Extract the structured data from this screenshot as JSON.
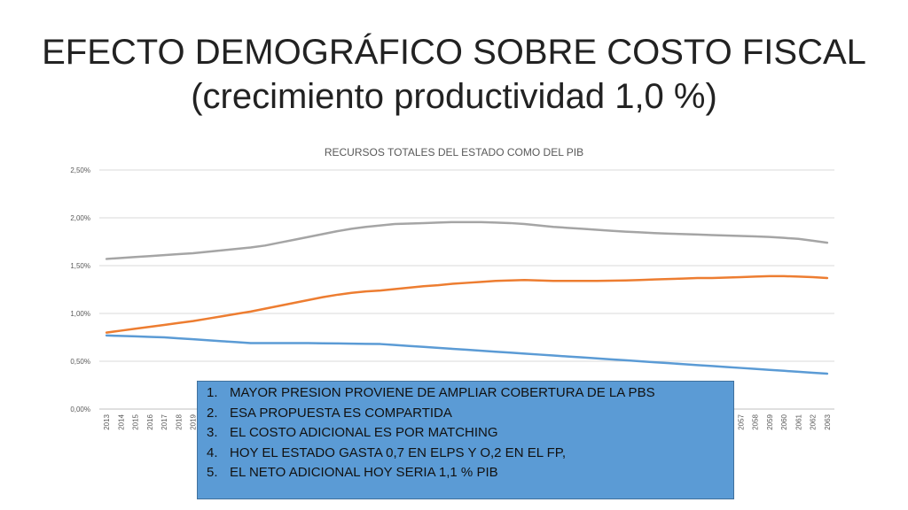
{
  "slide": {
    "title_line1": "EFECTO DEMOGRÁFICO SOBRE COSTO FISCAL",
    "title_line2": "(crecimiento productividad 1,0 %)"
  },
  "chart_data": {
    "type": "line",
    "title": "RECURSOS TOTALES DEL ESTADO COMO DEL PIB",
    "xlabel": "",
    "ylabel": "",
    "x": [
      "2013",
      "2014",
      "2015",
      "2016",
      "2017",
      "2018",
      "2019",
      "2020",
      "2021",
      "2022",
      "2023",
      "2024",
      "2025",
      "2026",
      "2027",
      "2028",
      "2029",
      "2030",
      "2031",
      "2032",
      "2033",
      "2034",
      "2035",
      "2036",
      "2037",
      "2038",
      "2039",
      "2040",
      "2041",
      "2042",
      "2043",
      "2044",
      "2045",
      "2046",
      "2047",
      "2048",
      "2049",
      "2050",
      "2051",
      "2052",
      "2053",
      "2054",
      "2055",
      "2056",
      "2057",
      "2058",
      "2059",
      "2060",
      "2061",
      "2062",
      "2063"
    ],
    "x_visible_ticks": [
      "2013",
      "2014",
      "2015",
      "2016",
      "2017",
      "2018",
      "2019",
      "2057",
      "2058",
      "2059",
      "2060",
      "2061",
      "2062",
      "2063"
    ],
    "yticks": [
      "0,00%",
      "0,50%",
      "1,00%",
      "1,50%",
      "2,00%",
      "2,50%"
    ],
    "ylim": [
      0,
      2.5
    ],
    "y_unit": "%",
    "grid": true,
    "legend": "none",
    "series": [
      {
        "color": "#5b9bd5",
        "values": [
          0.77,
          0.765,
          0.76,
          0.755,
          0.75,
          0.74,
          0.73,
          0.72,
          0.71,
          0.7,
          0.69,
          0.69,
          0.69,
          0.69,
          0.69,
          0.688,
          0.686,
          0.684,
          0.682,
          0.68,
          0.67,
          0.66,
          0.65,
          0.64,
          0.63,
          0.62,
          0.61,
          0.6,
          0.59,
          0.58,
          0.57,
          0.56,
          0.55,
          0.54,
          0.53,
          0.52,
          0.51,
          0.5,
          0.49,
          0.48,
          0.47,
          0.46,
          0.45,
          0.44,
          0.43,
          0.42,
          0.41,
          0.4,
          0.39,
          0.38,
          0.37
        ]
      },
      {
        "color": "#ed7d31",
        "values": [
          0.8,
          0.82,
          0.84,
          0.86,
          0.88,
          0.9,
          0.92,
          0.945,
          0.97,
          0.995,
          1.02,
          1.05,
          1.08,
          1.11,
          1.14,
          1.17,
          1.195,
          1.215,
          1.23,
          1.24,
          1.255,
          1.27,
          1.285,
          1.295,
          1.31,
          1.32,
          1.33,
          1.34,
          1.345,
          1.35,
          1.345,
          1.34,
          1.34,
          1.34,
          1.34,
          1.342,
          1.345,
          1.35,
          1.355,
          1.36,
          1.365,
          1.37,
          1.37,
          1.375,
          1.38,
          1.385,
          1.39,
          1.39,
          1.385,
          1.38,
          1.37
        ]
      },
      {
        "color": "#a5a5a5",
        "values": [
          1.57,
          1.58,
          1.59,
          1.6,
          1.61,
          1.62,
          1.63,
          1.645,
          1.66,
          1.675,
          1.69,
          1.71,
          1.74,
          1.77,
          1.8,
          1.83,
          1.86,
          1.885,
          1.905,
          1.92,
          1.935,
          1.94,
          1.945,
          1.95,
          1.955,
          1.955,
          1.955,
          1.95,
          1.945,
          1.935,
          1.92,
          1.905,
          1.895,
          1.885,
          1.875,
          1.865,
          1.855,
          1.848,
          1.84,
          1.835,
          1.83,
          1.825,
          1.82,
          1.815,
          1.81,
          1.805,
          1.8,
          1.79,
          1.78,
          1.76,
          1.74
        ]
      }
    ]
  },
  "notes": {
    "items": [
      {
        "num": "1.",
        "text": "MAYOR PRESION PROVIENE DE AMPLIAR COBERTURA DE LA PBS"
      },
      {
        "num": "2.",
        "text": "ESA PROPUESTA ES COMPARTIDA"
      },
      {
        "num": "3.",
        "text": "EL COSTO ADICIONAL ES POR MATCHING"
      },
      {
        "num": "4.",
        "text": "HOY EL ESTADO GASTA 0,7 EN ELPS Y O,2 EN EL FP,"
      },
      {
        "num": "5.",
        "text": "EL NETO ADICIONAL HOY SERIA 1,1 % PIB"
      }
    ],
    "box_color": "#5b9bd5"
  }
}
